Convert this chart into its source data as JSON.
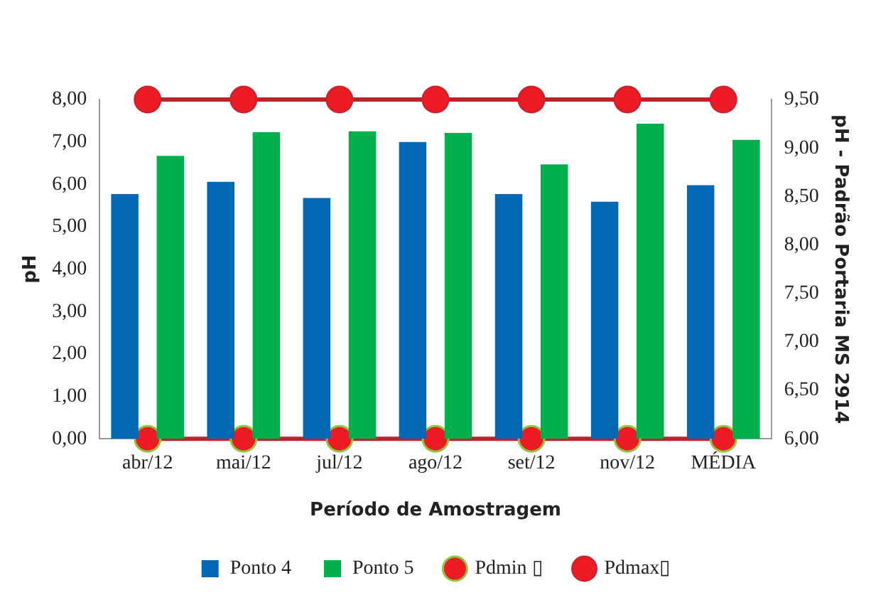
{
  "chart_data": {
    "type": "bar",
    "xlabel": "Período de Amostragem",
    "ylabel": "pH",
    "y2label": "pH - Padrão Portaria MS 2914",
    "categories": [
      "abr/12",
      "mai/12",
      "jul/12",
      "ago/12",
      "set/12",
      "nov/12",
      "MÉDIA"
    ],
    "series": [
      {
        "name": "Ponto 4",
        "color": "#0068b4",
        "values": [
          5.77,
          6.06,
          5.68,
          7.0,
          5.77,
          5.59,
          5.98
        ]
      },
      {
        "name": "Ponto 5",
        "color": "#00ae4c",
        "values": [
          6.67,
          7.23,
          7.25,
          7.21,
          6.47,
          7.43,
          7.05
        ]
      },
      {
        "name": "Pdmin ▯",
        "type": "line",
        "axis": "y2",
        "color": "#c0202a",
        "marker": "circle",
        "values": [
          6.0,
          6.0,
          6.0,
          6.0,
          6.0,
          6.0,
          6.0
        ]
      },
      {
        "name": "Pdmax▯",
        "type": "line",
        "axis": "y2",
        "color": "#c0202a",
        "marker": "circle",
        "values": [
          9.5,
          9.5,
          9.5,
          9.5,
          9.5,
          9.5,
          9.5
        ]
      }
    ],
    "ylim": [
      0,
      8
    ],
    "yticks": [
      {
        "value": 0,
        "label": "0,00"
      },
      {
        "value": 1,
        "label": "1,00"
      },
      {
        "value": 2,
        "label": "2,00"
      },
      {
        "value": 3,
        "label": "3,00"
      },
      {
        "value": 4,
        "label": "4,00"
      },
      {
        "value": 5,
        "label": "5,00"
      },
      {
        "value": 6,
        "label": "6,00"
      },
      {
        "value": 7,
        "label": "7,00"
      },
      {
        "value": 8,
        "label": "8,00"
      }
    ],
    "y2lim": [
      6,
      9.5
    ],
    "y2ticks": [
      {
        "value": 6,
        "label": "6,00"
      },
      {
        "value": 6.5,
        "label": "6,50"
      },
      {
        "value": 7,
        "label": "7,00"
      },
      {
        "value": 7.5,
        "label": "7,50"
      },
      {
        "value": 8,
        "label": "8,00"
      },
      {
        "value": 8.5,
        "label": "8,50"
      },
      {
        "value": 9,
        "label": "9,00"
      },
      {
        "value": 9.5,
        "label": "9,50"
      }
    ],
    "grid": false,
    "legend": "bottom"
  }
}
